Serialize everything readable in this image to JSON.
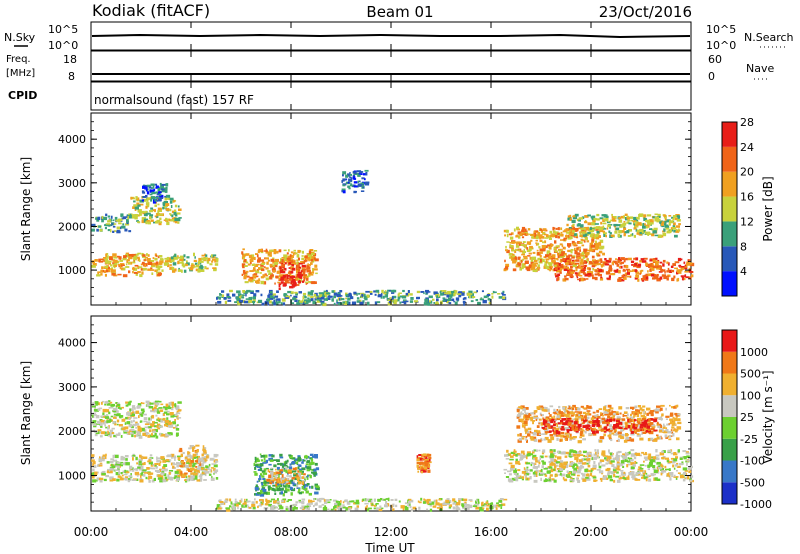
{
  "header": {
    "station": "Kodiak (fitACF)",
    "beam": "Beam 01",
    "date": "23/Oct/2016"
  },
  "strips": {
    "nsky_label": "N.Sky",
    "nsky_ticks": [
      "10^5",
      "10^0"
    ],
    "nsearch_label": "N.Search",
    "nsearch_ticks": [
      "10^5",
      "10^0"
    ],
    "freq_label_top": "Freq.",
    "freq_label_unit": "[MHz]",
    "freq_ticks": [
      "18",
      "8"
    ],
    "nave_label": "Nave",
    "nave_ticks": [
      "60",
      "0"
    ],
    "cpid_label": "CPID",
    "cpid_text": "normalsound (fast) 157 RF"
  },
  "x_axis": {
    "title": "Time UT",
    "ticks": [
      "00:00",
      "04:00",
      "08:00",
      "12:00",
      "16:00",
      "20:00",
      "00:00"
    ],
    "range_hours": [
      0,
      24
    ]
  },
  "chart_data": [
    {
      "type": "heatmap",
      "name": "power-panel",
      "ylabel": "Slant Range [km]",
      "yticks": [
        "1000",
        "2000",
        "3000",
        "4000"
      ],
      "ylim": [
        200,
        4600
      ],
      "colorbar_label": "Power [dB]",
      "colorbar_ticks": [
        "4",
        "8",
        "12",
        "16",
        "20",
        "24",
        "28"
      ],
      "colors": [
        "#0010ff",
        "#2858b8",
        "#3aa07a",
        "#c8d23c",
        "#f0a020",
        "#f06418",
        "#e81e18"
      ],
      "regions": [
        {
          "t": [
            0.0,
            2.8
          ],
          "r": [
            900,
            1400
          ],
          "level": 4
        },
        {
          "t": [
            2.8,
            5.0
          ],
          "r": [
            1000,
            1400
          ],
          "level": 3
        },
        {
          "t": [
            0.0,
            1.5
          ],
          "r": [
            1900,
            2300
          ],
          "level": 2
        },
        {
          "t": [
            1.5,
            3.5
          ],
          "r": [
            2100,
            2700
          ],
          "level": 3
        },
        {
          "t": [
            2.0,
            3.0
          ],
          "r": [
            2600,
            3000
          ],
          "level": 1
        },
        {
          "t": [
            6.0,
            9.0
          ],
          "r": [
            700,
            1500
          ],
          "level": 4
        },
        {
          "t": [
            7.5,
            8.5
          ],
          "r": [
            600,
            1200
          ],
          "level": 6
        },
        {
          "t": [
            5.0,
            16.5
          ],
          "r": [
            250,
            550
          ],
          "level": 2
        },
        {
          "t": [
            10.0,
            11.0
          ],
          "r": [
            2800,
            3300
          ],
          "level": 1
        },
        {
          "t": [
            16.5,
            20.5
          ],
          "r": [
            1000,
            2000
          ],
          "level": 4
        },
        {
          "t": [
            18.5,
            24.0
          ],
          "r": [
            800,
            1300
          ],
          "level": 5
        },
        {
          "t": [
            19.0,
            23.5
          ],
          "r": [
            1800,
            2300
          ],
          "level": 3
        }
      ]
    },
    {
      "type": "heatmap",
      "name": "velocity-panel",
      "ylabel": "Slant Range [km]",
      "yticks": [
        "1000",
        "2000",
        "3000",
        "4000"
      ],
      "ylim": [
        200,
        4600
      ],
      "colorbar_label": "Velocity [m s⁻¹]",
      "colorbar_ticks": [
        "1000",
        "500",
        "100",
        "25",
        "-25",
        "-100",
        "-500",
        "-1000"
      ],
      "colors": [
        "#1c30c8",
        "#3878c8",
        "#38a048",
        "#6cd030",
        "#c8c8c0",
        "#f0b030",
        "#f07818",
        "#e81818"
      ],
      "regions": [
        {
          "t": [
            0.0,
            5.0
          ],
          "r": [
            900,
            1500
          ],
          "level": 4
        },
        {
          "t": [
            0.0,
            3.5
          ],
          "r": [
            1900,
            2700
          ],
          "level": 4
        },
        {
          "t": [
            3.5,
            4.5
          ],
          "r": [
            1000,
            1700
          ],
          "level": 5
        },
        {
          "t": [
            6.5,
            9.0
          ],
          "r": [
            600,
            1500
          ],
          "level": 2
        },
        {
          "t": [
            7.0,
            8.5
          ],
          "r": [
            800,
            1200
          ],
          "level": 5
        },
        {
          "t": [
            5.0,
            16.5
          ],
          "r": [
            250,
            500
          ],
          "level": 4
        },
        {
          "t": [
            13.0,
            13.5
          ],
          "r": [
            1100,
            1500
          ],
          "level": 6
        },
        {
          "t": [
            16.5,
            24.0
          ],
          "r": [
            900,
            1600
          ],
          "level": 4
        },
        {
          "t": [
            17.0,
            23.5
          ],
          "r": [
            1800,
            2600
          ],
          "level": 5
        },
        {
          "t": [
            18.0,
            22.5
          ],
          "r": [
            2000,
            2300
          ],
          "level": 7
        }
      ]
    }
  ]
}
